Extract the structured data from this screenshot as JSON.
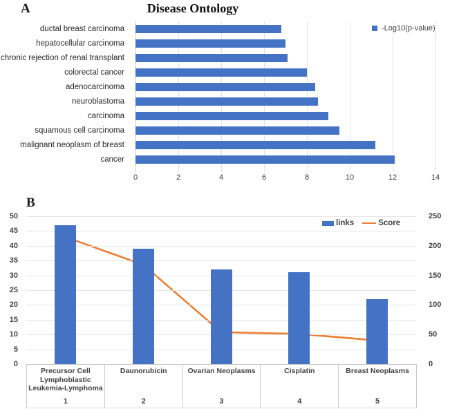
{
  "panel_a": {
    "label": "A",
    "title": "Disease Ontology",
    "legend": {
      "label": "-Log10(p-value)",
      "color": "#4472C4"
    }
  },
  "panel_b": {
    "label": "B",
    "legend": [
      {
        "label": "links",
        "color": "#4472C4",
        "type": "bar"
      },
      {
        "label": "Score",
        "color": "#ED7D31",
        "type": "line"
      }
    ]
  },
  "colors": {
    "bar_blue": "#4472C4",
    "line_orange": "#ED7D31",
    "gridline": "#e4e4e4"
  },
  "chart_data": [
    {
      "id": "disease-ontology",
      "type": "bar",
      "orientation": "horizontal",
      "title": "Disease Ontology",
      "series_name": "-Log10(p-value)",
      "categories": [
        "ductal breast carcinoma",
        "hepatocellular carcinoma",
        "chronic rejection of renal transplant",
        "colorectal cancer",
        "adenocarcinoma",
        "neuroblastoma",
        "carcinoma",
        "squamous cell carcinoma",
        "malignant neoplasm of breast",
        "cancer"
      ],
      "values": [
        6.8,
        7.0,
        7.1,
        8.0,
        8.4,
        8.5,
        9.0,
        9.5,
        11.2,
        12.1
      ],
      "xlim": [
        0,
        14
      ],
      "xticks": [
        0,
        2,
        4,
        6,
        8,
        10,
        12,
        14
      ],
      "grid": true,
      "legend_position": "right",
      "bar_color": "#4472C4"
    },
    {
      "id": "links-score-combo",
      "type": "bar",
      "subtype": "combo-bar-line",
      "categories": [
        "Precursor Cell Lymphoblastic Leukemia-Lymphoma",
        "Daunorubicin",
        "Ovarian Neoplasms",
        "Cisplatin",
        "Breast Neoplasms"
      ],
      "category_numbers": [
        "1",
        "2",
        "3",
        "4",
        "5"
      ],
      "series": [
        {
          "name": "links",
          "type": "bar",
          "axis": "left",
          "values": [
            47,
            39,
            32,
            31,
            22
          ],
          "color": "#4472C4"
        },
        {
          "name": "Score",
          "type": "line",
          "axis": "right",
          "values": [
            215,
            168,
            54,
            51,
            40
          ],
          "color": "#ED7D31"
        }
      ],
      "left_axis": {
        "min": 0,
        "max": 50,
        "step": 5,
        "ticks": [
          0,
          5,
          10,
          15,
          20,
          25,
          30,
          35,
          40,
          45,
          50
        ]
      },
      "right_axis": {
        "min": 0,
        "max": 250,
        "step": 50,
        "ticks": [
          0,
          50,
          100,
          150,
          200,
          250
        ]
      },
      "grid": true,
      "legend_position": "top-right"
    }
  ]
}
